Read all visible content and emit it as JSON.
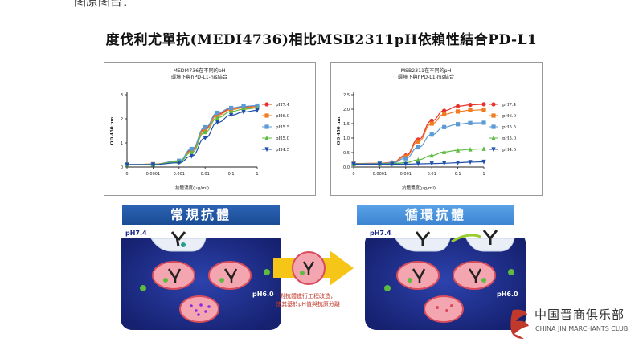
{
  "page": {
    "top_cut_text": "图原图台：",
    "main_title": "度伐利尤單抗(MEDI4736)相比MSB2311pH依賴性結合PD-L1",
    "banner_left": "常規抗體",
    "banner_right": "循環抗體",
    "scene_labels": {
      "ph74_left": "pH7.4",
      "ph60_left": "pH6.0",
      "ph74_right": "pH7.4",
      "ph60_right": "pH6.0"
    },
    "caption_line1": "對抗體進行工程改造，",
    "caption_line2": "使其基於pH值與抗原分離"
  },
  "logo": {
    "cn": "中国晋商俱乐部",
    "en": "CHINA JIN MARCHANTS CLUB"
  },
  "colors": {
    "ph74": "#e8332a",
    "ph60": "#f07c22",
    "ph55": "#5b9bd5",
    "ph50": "#5dbb3f",
    "ph45": "#1f4fa8",
    "banner_left": "#2158a6",
    "banner_right": "#4b93de",
    "scene_bg": "#1d2a8c",
    "arrow": "#f5c518"
  },
  "chart_data": [
    {
      "type": "line",
      "title": "MEDI4736在不同的pH\n環境下與hPD-L1-his結合",
      "title_lines": [
        "MEDI4736在不同的pH",
        "環境下與hPD-L1-his結合"
      ],
      "xlabel": "抗體濃度(μg/ml)",
      "ylabel": "OD 450 nm",
      "xscale": "log",
      "xlim": [
        1e-05,
        1
      ],
      "ylim": [
        0,
        3
      ],
      "x_tick_labels": [
        "0",
        "0.0001",
        "0.001",
        "0.01",
        "0.1",
        "1"
      ],
      "y_tick_labels": [
        "0",
        "1",
        "2",
        "3"
      ],
      "x": [
        1e-05,
        0.0001,
        0.001,
        0.003,
        0.01,
        0.03,
        0.1,
        0.3,
        1
      ],
      "series": [
        {
          "name": "pH7.4",
          "marker": "circle",
          "values": [
            0.1,
            0.12,
            0.25,
            0.7,
            1.6,
            2.2,
            2.42,
            2.5,
            2.52
          ]
        },
        {
          "name": "pH6.0",
          "marker": "square",
          "values": [
            0.1,
            0.12,
            0.24,
            0.66,
            1.55,
            2.15,
            2.38,
            2.46,
            2.5
          ]
        },
        {
          "name": "pH5.5",
          "marker": "square",
          "values": [
            0.1,
            0.11,
            0.26,
            0.75,
            1.65,
            2.25,
            2.45,
            2.52,
            2.55
          ]
        },
        {
          "name": "pH5.0",
          "marker": "triangle-up",
          "values": [
            0.1,
            0.11,
            0.22,
            0.6,
            1.45,
            2.05,
            2.3,
            2.4,
            2.45
          ]
        },
        {
          "name": "pH4.5",
          "marker": "triangle-down",
          "values": [
            0.1,
            0.1,
            0.18,
            0.45,
            1.2,
            1.85,
            2.15,
            2.28,
            2.35
          ]
        }
      ]
    },
    {
      "type": "line",
      "title": "MSB2311在不同的pH\n環境下與hPD-L1-his結合",
      "title_lines": [
        "MSB2311在不同的pH",
        "環境下與hPD-L1-his結合"
      ],
      "xlabel": "抗體濃度(μg/ml)",
      "ylabel": "OD 450 nm",
      "xscale": "log",
      "xlim": [
        1e-05,
        1
      ],
      "ylim": [
        0,
        2.5
      ],
      "x_tick_labels": [
        "0",
        "0.0001",
        "0.001",
        "0.01",
        "0.1",
        "1"
      ],
      "y_tick_labels": [
        "0.0",
        "0.5",
        "1.0",
        "1.5",
        "2.0",
        "2.5"
      ],
      "x": [
        1e-05,
        0.0001,
        0.0003,
        0.001,
        0.003,
        0.01,
        0.03,
        0.1,
        0.3,
        1
      ],
      "series": [
        {
          "name": "pH7.4",
          "marker": "circle",
          "values": [
            0.12,
            0.13,
            0.16,
            0.4,
            0.95,
            1.6,
            1.95,
            2.1,
            2.15,
            2.17
          ]
        },
        {
          "name": "pH6.0",
          "marker": "square",
          "values": [
            0.12,
            0.13,
            0.15,
            0.36,
            0.88,
            1.5,
            1.82,
            1.92,
            1.96,
            1.98
          ]
        },
        {
          "name": "pH5.5",
          "marker": "square",
          "values": [
            0.11,
            0.12,
            0.14,
            0.3,
            0.68,
            1.12,
            1.38,
            1.48,
            1.52,
            1.53
          ]
        },
        {
          "name": "pH5.0",
          "marker": "triangle-up",
          "values": [
            0.1,
            0.11,
            0.12,
            0.15,
            0.25,
            0.4,
            0.52,
            0.58,
            0.61,
            0.63
          ]
        },
        {
          "name": "pH4.5",
          "marker": "triangle-down",
          "values": [
            0.1,
            0.1,
            0.1,
            0.1,
            0.11,
            0.12,
            0.13,
            0.15,
            0.17,
            0.18
          ]
        }
      ]
    }
  ]
}
